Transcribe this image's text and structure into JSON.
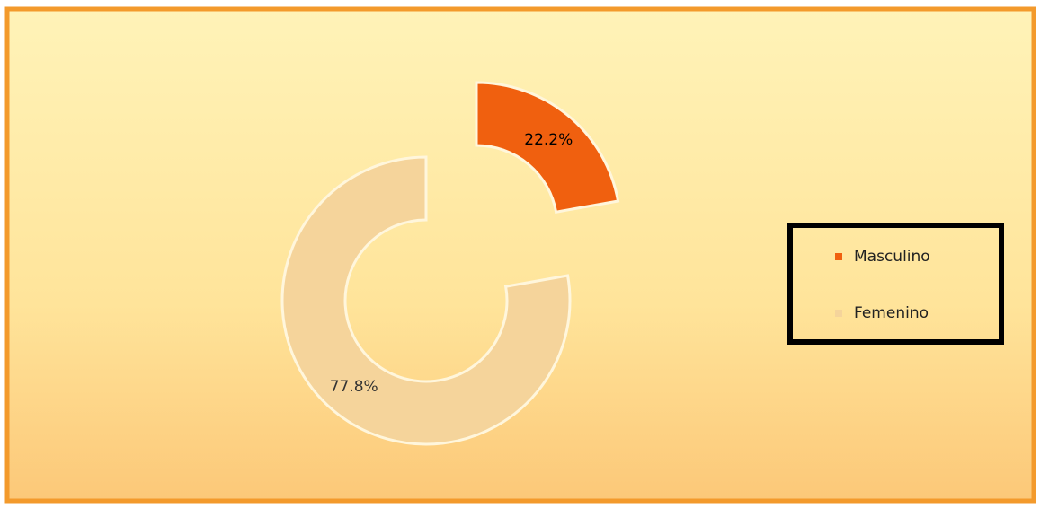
{
  "chart_data": {
    "type": "pie",
    "categories": [
      "Masculino",
      "Femenino"
    ],
    "values": [
      22.2,
      77.8
    ],
    "value_labels": [
      "22.2%",
      "77.8%"
    ],
    "colors": [
      "#f0600f",
      "#f5d49b"
    ],
    "donut": true,
    "legend": "right"
  }
}
